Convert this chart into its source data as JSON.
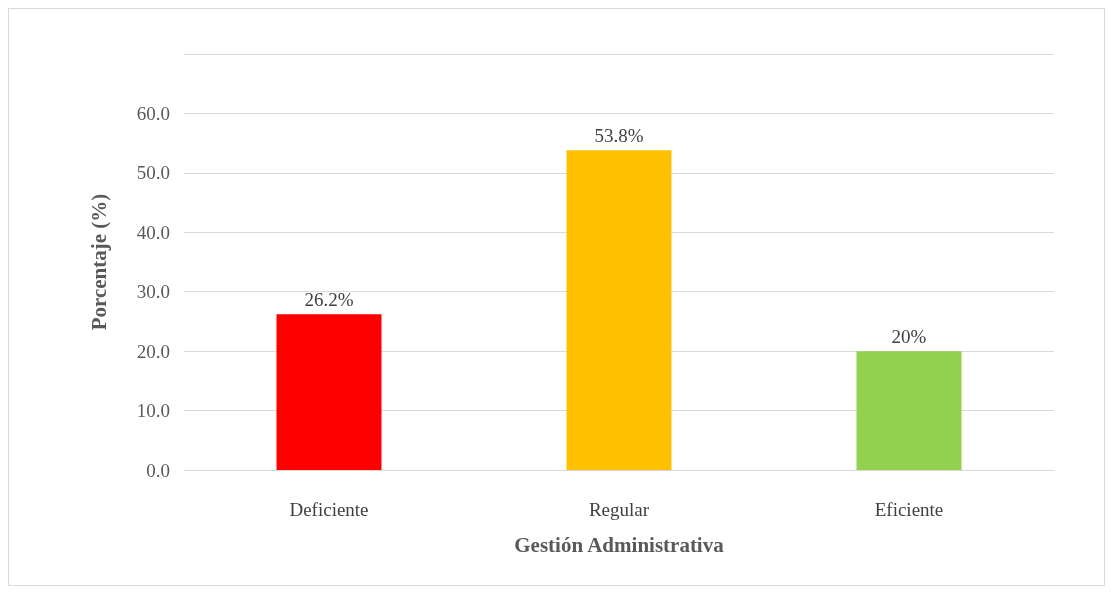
{
  "chart_data": {
    "type": "bar",
    "xlabel": "Gestión Administrativa",
    "ylabel": "Porcentaje (%)",
    "categories": [
      "Deficiente",
      "Regular",
      "Eficiente"
    ],
    "values": [
      26.2,
      53.8,
      20
    ],
    "colors": [
      "#ff0000",
      "#ffc000",
      "#92d050"
    ],
    "value_labels": [
      "26.2%",
      "53.8%",
      "20%"
    ],
    "ylim": [
      0,
      70
    ],
    "yticks": [
      {
        "value": 0,
        "label": "0.0"
      },
      {
        "value": 10,
        "label": "10.0"
      },
      {
        "value": 20,
        "label": "20.0"
      },
      {
        "value": 30,
        "label": "30.0"
      },
      {
        "value": 40,
        "label": "40.0"
      },
      {
        "value": 50,
        "label": "50.0"
      },
      {
        "value": 60,
        "label": "60.0"
      },
      {
        "value": 70,
        "label": null
      }
    ],
    "grid": true
  }
}
